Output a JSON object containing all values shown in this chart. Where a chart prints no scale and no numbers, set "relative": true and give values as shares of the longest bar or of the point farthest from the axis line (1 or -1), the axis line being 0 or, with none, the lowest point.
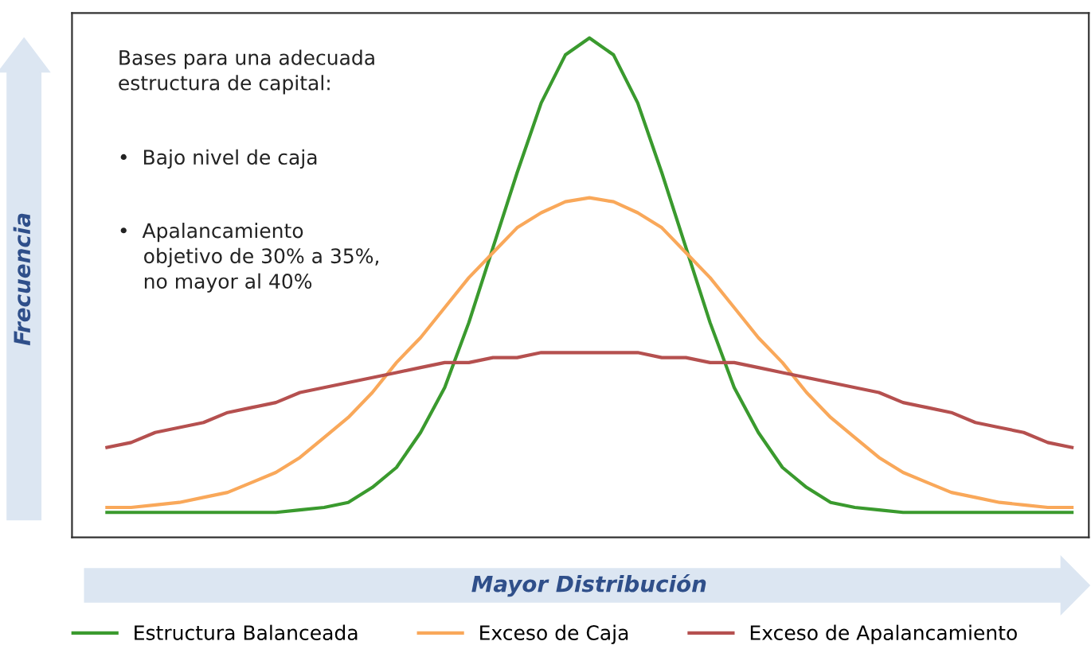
{
  "chart_data": {
    "type": "line",
    "relative": true,
    "xlabel": "Mayor Distribución",
    "ylabel": "Frecuencia",
    "categories": [
      null,
      null,
      null,
      null,
      null,
      null,
      null,
      null,
      null,
      null,
      null,
      null,
      null,
      null,
      null,
      null,
      null,
      null,
      null,
      null,
      null,
      null,
      null,
      null,
      null,
      null,
      null,
      null,
      null,
      null,
      null,
      null,
      null,
      null,
      null,
      null,
      null,
      null,
      null,
      null,
      null
    ],
    "series": [
      {
        "name": "Estructura Balanceada",
        "color": "#3a9a2e",
        "values": [
          0.05,
          0.05,
          0.05,
          0.05,
          0.05,
          0.05,
          0.05,
          0.05,
          0.055,
          0.06,
          0.07,
          0.1,
          0.14,
          0.21,
          0.3,
          0.43,
          0.58,
          0.73,
          0.87,
          0.966,
          1.0,
          0.966,
          0.87,
          0.73,
          0.58,
          0.43,
          0.3,
          0.21,
          0.14,
          0.1,
          0.07,
          0.06,
          0.055,
          0.05,
          0.05,
          0.05,
          0.05,
          0.05,
          0.05,
          0.05,
          0.05
        ]
      },
      {
        "name": "Exceso de Caja",
        "color": "#f9a85a",
        "values": [
          0.06,
          0.06,
          0.065,
          0.07,
          0.08,
          0.09,
          0.11,
          0.13,
          0.16,
          0.2,
          0.24,
          0.29,
          0.35,
          0.4,
          0.46,
          0.52,
          0.57,
          0.62,
          0.65,
          0.672,
          0.68,
          0.672,
          0.65,
          0.62,
          0.57,
          0.52,
          0.46,
          0.4,
          0.35,
          0.29,
          0.24,
          0.2,
          0.16,
          0.13,
          0.11,
          0.09,
          0.08,
          0.07,
          0.065,
          0.06,
          0.06
        ]
      },
      {
        "name": "Exceso de Apalancamiento",
        "color": "#b5504f",
        "values": [
          0.18,
          0.19,
          0.21,
          0.22,
          0.23,
          0.25,
          0.26,
          0.27,
          0.29,
          0.3,
          0.31,
          0.32,
          0.33,
          0.34,
          0.35,
          0.35,
          0.36,
          0.36,
          0.37,
          0.37,
          0.37,
          0.37,
          0.37,
          0.36,
          0.36,
          0.35,
          0.35,
          0.34,
          0.33,
          0.32,
          0.31,
          0.3,
          0.29,
          0.27,
          0.26,
          0.25,
          0.23,
          0.22,
          0.21,
          0.19,
          0.18
        ]
      }
    ],
    "annotations": [
      "Bases para una adecuada\nestructura de capital:",
      "•  Bajo nivel de caja",
      "•  Apalancamiento\n    objetivo de 30% a 35%,\n    no mayor al 40%"
    ],
    "legend": "bottom",
    "marker": "none",
    "line_style": "solid"
  }
}
